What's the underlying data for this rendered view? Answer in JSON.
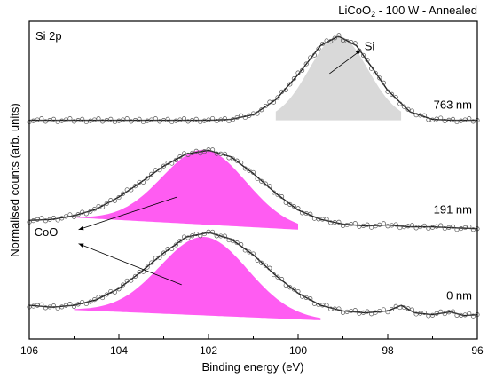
{
  "chart_data": {
    "type": "line",
    "title": "LiCoO2 - 100 W - Annealed",
    "title_parts": {
      "pre": "LiCoO",
      "sub": "2",
      "post": " - 100 W - Annealed"
    },
    "panel_label": "Si 2p",
    "xlabel": "Binding energy (eV)",
    "ylabel": "Normalised counts (arb. units)",
    "xlim": [
      106,
      96
    ],
    "x_reversed": true,
    "ylim": [
      0,
      3.4
    ],
    "xticks": [
      "106",
      "104",
      "102",
      "100",
      "98",
      "96"
    ],
    "xtick_values": [
      106,
      104,
      102,
      100,
      98,
      96
    ],
    "y_ticks_shown": false,
    "grid": false,
    "colors": {
      "si_fill": "#d9d9d9",
      "coo_fill": "#ff5cf2",
      "line": "#222222",
      "points": "#555555"
    },
    "series": [
      {
        "name": "0 nm",
        "offset": 0.3,
        "points": [
          [
            106,
            0.06
          ],
          [
            105.5,
            0.04
          ],
          [
            105,
            0.06
          ],
          [
            104.5,
            0.12
          ],
          [
            104,
            0.24
          ],
          [
            103.5,
            0.42
          ],
          [
            103,
            0.62
          ],
          [
            102.5,
            0.79
          ],
          [
            102,
            0.84
          ],
          [
            101.5,
            0.77
          ],
          [
            101,
            0.6
          ],
          [
            100.5,
            0.38
          ],
          [
            100,
            0.19
          ],
          [
            99.5,
            0.06
          ],
          [
            99,
            0.0
          ],
          [
            98.5,
            -0.02
          ],
          [
            98,
            0.0
          ],
          [
            97.7,
            0.06
          ],
          [
            97.4,
            -0.02
          ],
          [
            97,
            -0.04
          ],
          [
            96.6,
            -0.01
          ],
          [
            96.3,
            -0.05
          ],
          [
            96,
            -0.04
          ]
        ],
        "component": {
          "label": "CoO",
          "center": 102.1,
          "fwhm": 2.3,
          "amplitude": 0.84,
          "baseline": [
            [
              105,
              0.01
            ],
            [
              99.5,
              -0.1
            ]
          ]
        }
      },
      {
        "name": "191 nm",
        "offset": 1.22,
        "points": [
          [
            106,
            0.05
          ],
          [
            105.5,
            0.06
          ],
          [
            105,
            0.1
          ],
          [
            104.5,
            0.17
          ],
          [
            104,
            0.3
          ],
          [
            103.5,
            0.46
          ],
          [
            103,
            0.63
          ],
          [
            102.5,
            0.76
          ],
          [
            102,
            0.8
          ],
          [
            101.5,
            0.73
          ],
          [
            101,
            0.55
          ],
          [
            100.5,
            0.34
          ],
          [
            100,
            0.16
          ],
          [
            99.5,
            0.06
          ],
          [
            99,
            0.01
          ],
          [
            98.5,
            -0.01
          ],
          [
            98,
            0.0
          ],
          [
            97.5,
            -0.02
          ],
          [
            97,
            -0.02
          ],
          [
            96.5,
            -0.03
          ],
          [
            96,
            -0.04
          ]
        ],
        "component": {
          "label": "CoO",
          "center": 102.1,
          "fwhm": 2.2,
          "amplitude": 0.8,
          "baseline": [
            [
              105,
              0.08
            ],
            [
              100,
              -0.05
            ]
          ]
        }
      },
      {
        "name": "763 nm",
        "offset": 2.34,
        "points": [
          [
            106,
            0.0
          ],
          [
            105.5,
            0.0
          ],
          [
            105,
            0.0
          ],
          [
            104.5,
            0.0
          ],
          [
            104,
            0.0
          ],
          [
            103.5,
            0.0
          ],
          [
            103,
            0.0
          ],
          [
            102.5,
            0.0
          ],
          [
            102,
            0.0
          ],
          [
            101.5,
            0.01
          ],
          [
            101,
            0.06
          ],
          [
            100.5,
            0.22
          ],
          [
            100,
            0.49
          ],
          [
            99.5,
            0.8
          ],
          [
            99.1,
            0.9
          ],
          [
            98.7,
            0.8
          ],
          [
            98.3,
            0.53
          ],
          [
            98,
            0.32
          ],
          [
            97.5,
            0.09
          ],
          [
            97,
            0.01
          ],
          [
            96.5,
            0.0
          ],
          [
            96,
            0.0
          ]
        ],
        "component": {
          "label": "Si",
          "center": 99.1,
          "fwhm": 1.55,
          "amplitude": 0.9,
          "baseline": [
            [
              100.5,
              0.0
            ],
            [
              97.7,
              0.0
            ]
          ]
        }
      }
    ],
    "annotations": {
      "si_label": "Si",
      "coo_label": "CoO"
    }
  }
}
